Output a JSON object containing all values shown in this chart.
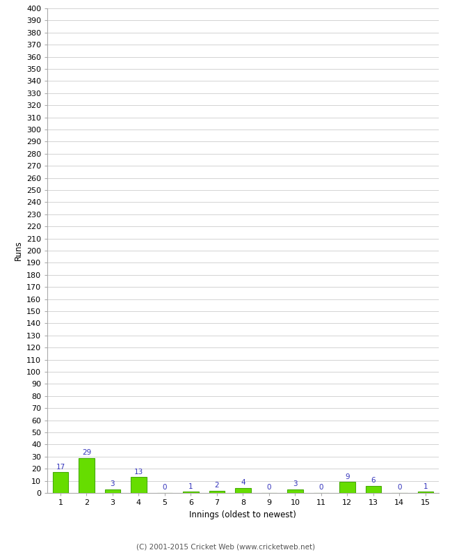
{
  "xlabel": "Innings (oldest to newest)",
  "ylabel": "Runs",
  "categories": [
    "1",
    "2",
    "3",
    "4",
    "5",
    "6",
    "7",
    "8",
    "9",
    "10",
    "11",
    "12",
    "13",
    "14",
    "15"
  ],
  "values": [
    17,
    29,
    3,
    13,
    0,
    1,
    2,
    4,
    0,
    3,
    0,
    9,
    6,
    0,
    1
  ],
  "bar_color": "#66dd00",
  "bar_edge_color": "#44aa00",
  "value_color": "#3333bb",
  "ylim": [
    0,
    400
  ],
  "ytick_step": 10,
  "background_color": "#ffffff",
  "grid_color": "#cccccc",
  "footer": "(C) 2001-2015 Cricket Web (www.cricketweb.net)"
}
